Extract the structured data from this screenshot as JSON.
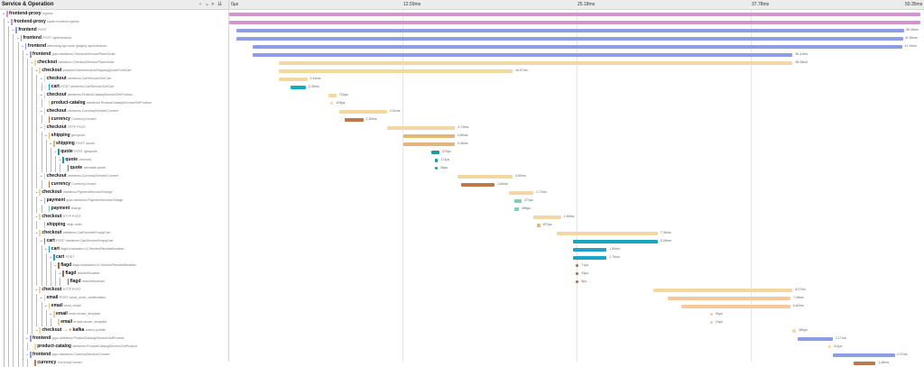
{
  "header": {
    "title": "Service & Operation",
    "controls": {
      "collapse_one": "›",
      "expand_one": "⌄",
      "collapse_all": "»",
      "expand_all": "⇊"
    },
    "ticks": [
      "0μs",
      "12.59ms",
      "25.18ms",
      "37.78ms",
      "50.35ms"
    ]
  },
  "colors": {
    "frontend-proxy": "#d692cf",
    "frontend": "#8c9de4",
    "checkout": "#f3d7a0",
    "checkout_dark": "#c49f6c",
    "cart": "#1ba7c4",
    "product-catalog": "#f3d7a0",
    "currency": "#b87a4c",
    "shipping": "#e0b67a",
    "quote": "#1c9aa0",
    "payment": "#7fcfb2",
    "flagd": "#a06a4a",
    "email": "#f6c89a",
    "kafka": "#d57a38"
  },
  "spans": [
    {
      "service": "frontend-proxy",
      "operation": "ingress",
      "collapsible": true,
      "color": "#d692cf",
      "start": 0.0,
      "end": 1.0,
      "duration": ""
    },
    {
      "service": "frontend-proxy",
      "operation": "router frontend egress",
      "collapsible": true,
      "color": "#d692cf",
      "start": 0.0,
      "end": 1.0,
      "duration": ""
    },
    {
      "service": "frontend",
      "operation": "POST",
      "collapsible": true,
      "color": "#8c9de4",
      "start": 0.011,
      "end": 0.977,
      "duration": "50.06ms"
    },
    {
      "service": "frontend",
      "operation": "POST /api/checkout",
      "collapsible": true,
      "color": "#8c9de4",
      "start": 0.011,
      "end": 0.975,
      "duration": "41.50ms"
    },
    {
      "service": "frontend",
      "operation": "executing api route (pages) /api/checkout",
      "collapsible": true,
      "color": "#8c9de4",
      "start": 0.034,
      "end": 0.974,
      "duration": "41.19ms"
    },
    {
      "service": "frontend",
      "operation": "grpc.oteldemo.CheckoutService/PlaceOrder",
      "collapsible": true,
      "color": "#8c9de4",
      "start": 0.034,
      "end": 0.815,
      "duration": "39.41ms"
    },
    {
      "service": "checkout",
      "operation": "oteldemo.CheckoutService/PlaceOrder",
      "collapsible": true,
      "color": "#f3d7a0",
      "start": 0.072,
      "end": 0.815,
      "duration": "38.28ms"
    },
    {
      "service": "checkout",
      "operation": "prepareOrderItemsAndShippingQuoteFromCart",
      "collapsible": true,
      "color": "#f3d7a0",
      "start": 0.072,
      "end": 0.41,
      "duration": "16.07ms"
    },
    {
      "service": "checkout",
      "operation": "oteldemo.CartService/GetCart",
      "collapsible": true,
      "color": "#f3d7a0",
      "start": 0.072,
      "end": 0.113,
      "duration": "2.44ms"
    },
    {
      "service": "cart",
      "operation": "POST oteldemo.CartService/GetCart",
      "collapsible": false,
      "color": "#1ba7c4",
      "start": 0.089,
      "end": 0.111,
      "duration": "2.05ms"
    },
    {
      "service": "checkout",
      "operation": "oteldemo.ProductCatalogService/GetProduct",
      "collapsible": true,
      "color": "#f3d7a0",
      "start": 0.143,
      "end": 0.155,
      "duration": "720μs"
    },
    {
      "service": "product-catalog",
      "operation": "oteldemo.ProductCatalogService/GetProduct",
      "collapsible": false,
      "color": "#f3d7a0",
      "start": 0.148,
      "end": 0.149,
      "duration": "100μs"
    },
    {
      "service": "checkout",
      "operation": "oteldemo.CurrencyService/Convert",
      "collapsible": true,
      "color": "#f3d7a0",
      "start": 0.159,
      "end": 0.228,
      "duration": "3.51ms"
    },
    {
      "service": "currency",
      "operation": "CurrencyConvert",
      "collapsible": false,
      "color": "#b87a4c",
      "start": 0.167,
      "end": 0.194,
      "duration": "1.30ms"
    },
    {
      "service": "checkout",
      "operation": "HTTP POST",
      "collapsible": true,
      "color": "#f3d7a0",
      "start": 0.229,
      "end": 0.327,
      "duration": "4.73ms"
    },
    {
      "service": "shipping",
      "operation": "get-quote",
      "collapsible": true,
      "color": "#e0b67a",
      "start": 0.252,
      "end": 0.326,
      "duration": "3.89ms"
    },
    {
      "service": "shipping",
      "operation": "POST /quote",
      "collapsible": true,
      "color": "#e0b67a",
      "start": 0.252,
      "end": 0.326,
      "duration": "3.46ms"
    },
    {
      "service": "quote",
      "operation": "POST /getquote",
      "collapsible": true,
      "color": "#1c9aa0",
      "start": 0.293,
      "end": 0.304,
      "duration": "370μs"
    },
    {
      "service": "quote",
      "operation": "{closure}",
      "collapsible": true,
      "color": "#1c9aa0",
      "start": 0.298,
      "end": 0.302,
      "duration": "171μs"
    },
    {
      "service": "quote",
      "operation": "calculate-quote",
      "collapsible": false,
      "color": "#1c9aa0",
      "start": 0.299,
      "end": 0.3,
      "duration": "38μs"
    },
    {
      "service": "checkout",
      "operation": "oteldemo.CurrencyService/Convert",
      "collapsible": true,
      "color": "#f3d7a0",
      "start": 0.33,
      "end": 0.41,
      "duration": "4.00ms"
    },
    {
      "service": "currency",
      "operation": "CurrencyConvert",
      "collapsible": false,
      "color": "#b87a4c",
      "start": 0.335,
      "end": 0.384,
      "duration": "1.84ms"
    },
    {
      "service": "checkout",
      "operation": "oteldemo.PaymentService/Charge",
      "collapsible": true,
      "color": "#f3d7a0",
      "start": 0.405,
      "end": 0.44,
      "duration": "1.72ms"
    },
    {
      "service": "payment",
      "operation": "grpc.oteldemo.PaymentService/Charge",
      "collapsible": true,
      "color": "#7fcfb2",
      "start": 0.413,
      "end": 0.423,
      "duration": "472μs"
    },
    {
      "service": "payment",
      "operation": "charge",
      "collapsible": false,
      "color": "#7fcfb2",
      "start": 0.413,
      "end": 0.419,
      "duration": "288μs"
    },
    {
      "service": "checkout",
      "operation": "HTTP POST",
      "collapsible": true,
      "color": "#f3d7a0",
      "start": 0.44,
      "end": 0.48,
      "duration": "1.65ms"
    },
    {
      "service": "shipping",
      "operation": "/ship-order",
      "collapsible": false,
      "color": "#e0b67a",
      "start": 0.445,
      "end": 0.45,
      "duration": "870μs"
    },
    {
      "service": "checkout",
      "operation": "oteldemo.CartService/EmptyCart",
      "collapsible": true,
      "color": "#f3d7a0",
      "start": 0.474,
      "end": 0.62,
      "duration": "7.36ms"
    },
    {
      "service": "cart",
      "operation": "POST oteldemo.CartService/EmptyCart",
      "collapsible": true,
      "color": "#1ba7c4",
      "start": 0.497,
      "end": 0.62,
      "duration": "5.05ms"
    },
    {
      "service": "cart",
      "operation": "flagd.evaluation.v1.Service/ResolveBoolean",
      "collapsible": true,
      "color": "#1ba7c4",
      "start": 0.497,
      "end": 0.546,
      "duration": "1.80ms"
    },
    {
      "service": "cart",
      "operation": "POST",
      "collapsible": true,
      "color": "#1ba7c4",
      "start": 0.497,
      "end": 0.546,
      "duration": "1.70ms"
    },
    {
      "service": "flagd",
      "operation": "flagd.evaluation.v1.Service/ResolveBoolean",
      "collapsible": true,
      "color": "#a06a4a",
      "start": 0.503,
      "end": 0.504,
      "duration": "71μs"
    },
    {
      "service": "flagd",
      "operation": "resolveBoolean",
      "collapsible": true,
      "color": "#a06a4a",
      "start": 0.503,
      "end": 0.504,
      "duration": "25μs"
    },
    {
      "service": "flagd",
      "operation": "resolveBoolean",
      "collapsible": false,
      "color": "#a06a4a",
      "start": 0.503,
      "end": 0.504,
      "duration": "9μs"
    },
    {
      "service": "checkout",
      "operation": "HTTP POST",
      "collapsible": true,
      "color": "#f3d7a0",
      "start": 0.614,
      "end": 0.815,
      "duration": "8.07ms"
    },
    {
      "service": "email",
      "operation": "POST /send_order_confirmation",
      "collapsible": true,
      "color": "#f6c89a",
      "start": 0.634,
      "end": 0.812,
      "duration": "7.08ms"
    },
    {
      "service": "email",
      "operation": "send_email",
      "collapsible": true,
      "color": "#f6c89a",
      "start": 0.654,
      "end": 0.812,
      "duration": "6.62ms"
    },
    {
      "service": "email",
      "operation": "erubi.render_template",
      "collapsible": true,
      "color": "#f6c89a",
      "start": 0.697,
      "end": 0.699,
      "duration": "95μs"
    },
    {
      "service": "email",
      "operation": "erubis.render_template",
      "collapsible": false,
      "color": "#f6c89a",
      "start": 0.697,
      "end": 0.698,
      "duration": "10μs"
    },
    {
      "service": "checkout",
      "operation": "orders publish",
      "collapsible": true,
      "color": "#f3d7a0",
      "start": 0.815,
      "end": 0.82,
      "duration": "380μs",
      "link": "kafka"
    },
    {
      "service": "frontend",
      "operation": "grpc.oteldemo.ProductCatalogService/GetProduct",
      "collapsible": true,
      "color": "#8c9de4",
      "start": 0.823,
      "end": 0.873,
      "duration": "2.17ms"
    },
    {
      "service": "product-catalog",
      "operation": "oteldemo.ProductCatalogService/GetProduct",
      "collapsible": false,
      "color": "#f3d7a0",
      "start": 0.868,
      "end": 0.87,
      "duration": "111μs"
    },
    {
      "service": "frontend",
      "operation": "grpc.oteldemo.CurrencyService/Convert",
      "collapsible": true,
      "color": "#8c9de4",
      "start": 0.874,
      "end": 0.963,
      "duration": "4.07ms"
    },
    {
      "service": "currency",
      "operation": "CurrencyConvert",
      "collapsible": false,
      "color": "#b87a4c",
      "start": 0.903,
      "end": 0.935,
      "duration": "1.48ms"
    }
  ]
}
